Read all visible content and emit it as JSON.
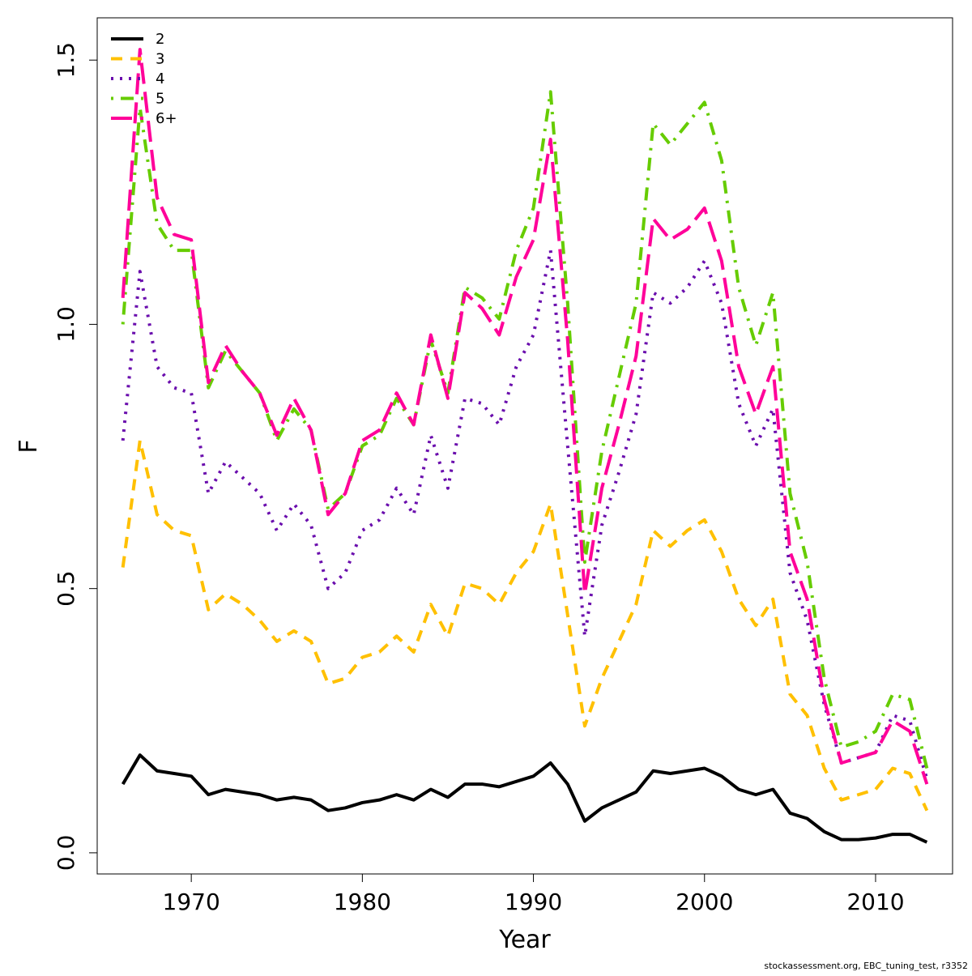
{
  "chart_data": {
    "type": "line",
    "xlabel": "Year",
    "ylabel": "F",
    "xlim": [
      1964.5,
      2014.5
    ],
    "ylim": [
      -0.04,
      1.58
    ],
    "xticks": [
      1970,
      1980,
      1990,
      2000,
      2010
    ],
    "yticks": [
      0.0,
      0.5,
      1.0,
      1.5
    ],
    "ytick_labels": [
      "0.0",
      "0.5",
      "1.0",
      "1.5"
    ],
    "legend_position": "top-left",
    "x": [
      1966,
      1967,
      1968,
      1969,
      1970,
      1971,
      1972,
      1973,
      1974,
      1975,
      1976,
      1977,
      1978,
      1979,
      1980,
      1981,
      1982,
      1983,
      1984,
      1985,
      1986,
      1987,
      1988,
      1989,
      1990,
      1991,
      1992,
      1993,
      1994,
      1995,
      1996,
      1997,
      1998,
      1999,
      2000,
      2001,
      2002,
      2003,
      2004,
      2005,
      2006,
      2007,
      2008,
      2009,
      2010,
      2011,
      2012,
      2013
    ],
    "series": [
      {
        "name": "2",
        "color": "#000000",
        "dash": "solid",
        "values": [
          0.13,
          0.185,
          0.155,
          0.15,
          0.145,
          0.11,
          0.12,
          0.115,
          0.11,
          0.1,
          0.105,
          0.1,
          0.08,
          0.085,
          0.095,
          0.1,
          0.11,
          0.1,
          0.12,
          0.105,
          0.13,
          0.13,
          0.125,
          0.135,
          0.145,
          0.17,
          0.13,
          0.06,
          0.085,
          0.1,
          0.115,
          0.155,
          0.15,
          0.155,
          0.16,
          0.145,
          0.12,
          0.11,
          0.12,
          0.075,
          0.065,
          0.04,
          0.025,
          0.025,
          0.028,
          0.035,
          0.035,
          0.02
        ]
      },
      {
        "name": "3",
        "color": "#ffc000",
        "dash": "dashed",
        "values": [
          0.54,
          0.78,
          0.64,
          0.61,
          0.6,
          0.46,
          0.49,
          0.47,
          0.44,
          0.4,
          0.42,
          0.4,
          0.32,
          0.33,
          0.37,
          0.38,
          0.41,
          0.38,
          0.47,
          0.41,
          0.51,
          0.5,
          0.47,
          0.53,
          0.57,
          0.66,
          0.45,
          0.24,
          0.33,
          0.4,
          0.47,
          0.61,
          0.58,
          0.61,
          0.63,
          0.57,
          0.48,
          0.43,
          0.48,
          0.3,
          0.26,
          0.16,
          0.1,
          0.11,
          0.12,
          0.16,
          0.15,
          0.08
        ]
      },
      {
        "name": "4",
        "color": "#6a0dad",
        "dash": "dotted",
        "values": [
          0.78,
          1.1,
          0.92,
          0.88,
          0.87,
          0.68,
          0.74,
          0.71,
          0.68,
          0.61,
          0.66,
          0.62,
          0.5,
          0.53,
          0.61,
          0.63,
          0.69,
          0.64,
          0.79,
          0.69,
          0.86,
          0.85,
          0.81,
          0.92,
          0.98,
          1.14,
          0.77,
          0.41,
          0.62,
          0.72,
          0.83,
          1.06,
          1.04,
          1.07,
          1.12,
          1.04,
          0.85,
          0.77,
          0.84,
          0.53,
          0.44,
          0.28,
          0.17,
          0.18,
          0.19,
          0.26,
          0.25,
          0.14
        ]
      },
      {
        "name": "5",
        "color": "#66cc00",
        "dash": "dotdash",
        "values": [
          1.0,
          1.41,
          1.19,
          1.14,
          1.14,
          0.88,
          0.95,
          0.91,
          0.87,
          0.78,
          0.84,
          0.8,
          0.65,
          0.68,
          0.77,
          0.79,
          0.86,
          0.81,
          0.97,
          0.87,
          1.07,
          1.05,
          1.01,
          1.14,
          1.22,
          1.44,
          1.04,
          0.55,
          0.76,
          0.9,
          1.04,
          1.38,
          1.34,
          1.38,
          1.42,
          1.31,
          1.07,
          0.96,
          1.06,
          0.68,
          0.55,
          0.33,
          0.2,
          0.21,
          0.23,
          0.3,
          0.29,
          0.16
        ]
      },
      {
        "name": "6+",
        "color": "#ff0099",
        "dash": "longdash",
        "values": [
          1.05,
          1.52,
          1.24,
          1.17,
          1.16,
          0.89,
          0.96,
          0.91,
          0.87,
          0.79,
          0.86,
          0.8,
          0.64,
          0.68,
          0.78,
          0.8,
          0.87,
          0.81,
          0.98,
          0.86,
          1.06,
          1.03,
          0.98,
          1.09,
          1.16,
          1.35,
          0.97,
          0.49,
          0.69,
          0.81,
          0.94,
          1.2,
          1.16,
          1.18,
          1.22,
          1.12,
          0.92,
          0.83,
          0.92,
          0.57,
          0.48,
          0.29,
          0.17,
          0.18,
          0.19,
          0.25,
          0.23,
          0.13
        ]
      }
    ]
  },
  "footer": "stockassessment.org, EBC_tuning_test, r3352"
}
